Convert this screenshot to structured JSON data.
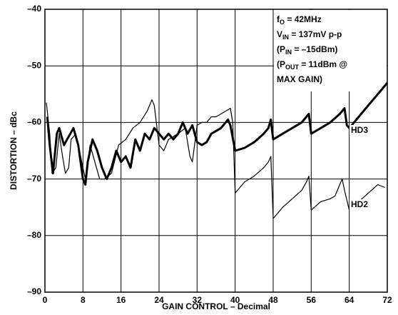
{
  "chart_data": {
    "type": "line",
    "xlabel": "GAIN CONTROL – Decimal",
    "ylabel": "DISTORTION – dBc",
    "xlim": [
      0,
      72
    ],
    "xticks": [
      0,
      8,
      16,
      24,
      32,
      40,
      48,
      56,
      64,
      72
    ],
    "ylim": [
      -90,
      -40
    ],
    "yticks": [
      {
        "value": -90,
        "label": "–90"
      },
      {
        "value": -80,
        "label": "–80"
      },
      {
        "value": -70,
        "label": "–70"
      },
      {
        "value": -60,
        "label": "–60"
      },
      {
        "value": -50,
        "label": "–50"
      },
      {
        "value": -40,
        "label": "–40"
      }
    ],
    "grid": true,
    "annotation": [
      [
        "f",
        "O",
        " = 42MHz"
      ],
      [
        "V",
        "IN",
        " = 137mV p-p"
      ],
      [
        "(P",
        "IN",
        " = –15dBm)"
      ],
      [
        "(P",
        "OUT",
        " = 11dBm @"
      ],
      [
        "MAX GAIN)"
      ]
    ],
    "series": [
      {
        "name": "HD3",
        "color": "#000000",
        "width": 3,
        "x": [
          0.5,
          1,
          1.7,
          2.5,
          3,
          4,
          5,
          6,
          7,
          8,
          8.5,
          9,
          10,
          11,
          12,
          13,
          14,
          15,
          16,
          17,
          18,
          19,
          20,
          21,
          22,
          23,
          24,
          25,
          26,
          27,
          28,
          29,
          30,
          31,
          32,
          33,
          34,
          35,
          36,
          37,
          38,
          38.5,
          39,
          40,
          42,
          44,
          46,
          47,
          47.5,
          48,
          50,
          52,
          54,
          55.5,
          56,
          58,
          60,
          62,
          63,
          63.5,
          64,
          66,
          68,
          70,
          72
        ],
        "values": [
          -59,
          -64,
          -69,
          -62,
          -61,
          -64,
          -62.5,
          -61,
          -64,
          -70,
          -71,
          -67,
          -63,
          -65,
          -68,
          -70,
          -68,
          -65,
          -67,
          -66,
          -68,
          -63,
          -65,
          -62,
          -63,
          -61,
          -62,
          -63,
          -62,
          -63,
          -62,
          -60,
          -62,
          -60.5,
          -63.5,
          -64,
          -63.5,
          -62,
          -61.5,
          -61,
          -60,
          -59.5,
          -60.5,
          -65,
          -64.5,
          -63.5,
          -62,
          -61,
          -59.5,
          -63,
          -62,
          -61,
          -60,
          -58.5,
          -62,
          -61,
          -60,
          -58.5,
          -57.5,
          -60.5,
          -61,
          -59,
          -57,
          -55,
          -53
        ]
      },
      {
        "name": "HD2",
        "color": "#000000",
        "width": 1.2,
        "x": [
          0.3,
          1,
          1.5,
          2.3,
          3,
          3.7,
          4.3,
          5,
          5.5,
          6.5,
          7,
          8,
          8.5,
          9,
          9.5,
          10.5,
          11.5,
          12.5,
          14,
          15.5,
          17,
          18.5,
          20,
          21.5,
          22.5,
          23,
          24,
          25,
          26,
          28,
          29.5,
          30.5,
          31,
          32,
          33,
          34,
          35,
          36,
          37,
          38,
          39,
          39.5,
          40,
          42,
          44,
          46,
          47,
          47.5,
          48,
          50,
          52,
          54,
          55,
          55.5,
          56,
          58,
          60,
          61,
          62,
          62.5,
          63,
          64,
          66,
          68,
          70,
          71.5
        ],
        "values": [
          -56.5,
          -62,
          -69,
          -68,
          -62,
          -66,
          -69,
          -68,
          -63,
          -62,
          -64,
          -68,
          -70,
          -67,
          -64,
          -67,
          -70,
          -70,
          -69,
          -64,
          -63,
          -61,
          -60,
          -58,
          -56,
          -57,
          -64,
          -65,
          -63,
          -62,
          -61,
          -66,
          -67,
          -60.5,
          -60,
          -60,
          -59,
          -59,
          -58.5,
          -58,
          -57.5,
          -60,
          -72.5,
          -70.5,
          -69.5,
          -68,
          -67,
          -66,
          -77,
          -75,
          -73.5,
          -72,
          -70.5,
          -69.5,
          -75.5,
          -74,
          -73.5,
          -73,
          -71,
          -70,
          -72,
          -75.5,
          -74,
          -72.5,
          -71,
          -71.5
        ]
      }
    ]
  }
}
